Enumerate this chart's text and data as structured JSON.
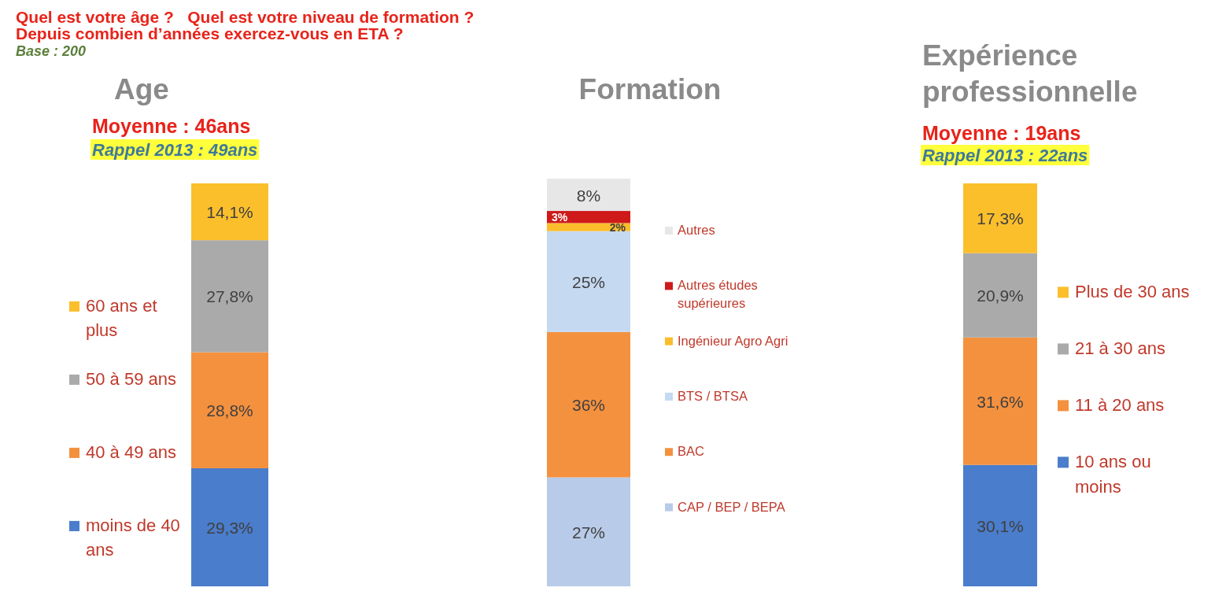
{
  "chart_data": [
    {
      "type": "other",
      "title": "Quel est votre âge ?   Quel est votre niveau de formation ? Depuis combien d’années exercez-vous en ETA ?",
      "subtitle": "Base : 200"
    },
    {
      "type": "bar",
      "title": "Age",
      "annotations": [
        "Moyenne : 46ans",
        "Rappel 2013 : 49ans"
      ],
      "categories": [
        null
      ],
      "stacked": true,
      "legend": "left",
      "series": [
        {
          "name": "moins de 40 ans",
          "color": "#4a7dcb",
          "values": [
            29.3
          ],
          "value_labels": [
            "29,3%"
          ]
        },
        {
          "name": "40 à 49 ans",
          "color": "#f4913f",
          "values": [
            28.8
          ],
          "value_labels": [
            "28,8%"
          ]
        },
        {
          "name": "50 à 59 ans",
          "color": "#aaaaaa",
          "values": [
            27.8
          ],
          "value_labels": [
            "27,8%"
          ]
        },
        {
          "name": "60 ans et plus",
          "color": "#fbbf2c",
          "values": [
            14.1
          ],
          "value_labels": [
            "14,1%"
          ]
        }
      ]
    },
    {
      "type": "bar",
      "title": "Formation",
      "categories": [
        null
      ],
      "stacked": true,
      "legend": "right",
      "series": [
        {
          "name": "CAP / BEP / BEPA",
          "color": "#b8cbe9",
          "values": [
            27
          ],
          "value_labels": [
            "27%"
          ]
        },
        {
          "name": "BAC",
          "color": "#f4913f",
          "values": [
            36
          ],
          "value_labels": [
            "36%"
          ]
        },
        {
          "name": "BTS / BTSA",
          "color": "#c5d9f0",
          "values": [
            25
          ],
          "value_labels": [
            "25%"
          ]
        },
        {
          "name": "Ingénieur Agro Agri",
          "color": "#fbbd2b",
          "values": [
            2
          ],
          "value_labels": [
            "2%"
          ]
        },
        {
          "name": "Autres études supérieures",
          "color": "#cf1a1a",
          "values": [
            3
          ],
          "value_labels": [
            "3%"
          ]
        },
        {
          "name": "Autres",
          "color": "#e7e7e7",
          "values": [
            8
          ],
          "value_labels": [
            "8%"
          ]
        }
      ]
    },
    {
      "type": "bar",
      "title": "Expérience professionnelle",
      "annotations": [
        "Moyenne : 19ans",
        "Rappel 2013 : 22ans"
      ],
      "categories": [
        null
      ],
      "stacked": true,
      "legend": "right",
      "series": [
        {
          "name": "10 ans ou moins",
          "color": "#4a7dcb",
          "values": [
            30.1
          ],
          "value_labels": [
            "30,1%"
          ]
        },
        {
          "name": "11 à 20 ans",
          "color": "#f4913f",
          "values": [
            31.6
          ],
          "value_labels": [
            "31,6%"
          ]
        },
        {
          "name": "21 à 30 ans",
          "color": "#aaaaaa",
          "values": [
            20.9
          ],
          "value_labels": [
            "20,9%"
          ]
        },
        {
          "name": "Plus de 30 ans",
          "color": "#fbbf2c",
          "values": [
            17.3
          ],
          "value_labels": [
            "17,3%"
          ]
        }
      ]
    }
  ]
}
